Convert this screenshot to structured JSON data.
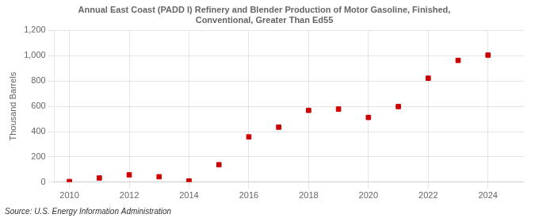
{
  "chart_data": {
    "type": "scatter",
    "title": [
      "Annual East Coast (PADD I) Refinery and Blender Production of Motor Gasoline, Finished,",
      "Conventional, Greater Than Ed55"
    ],
    "ylabel": "Thousand Barrels",
    "annotation": "Source: U.S. Energy Information Administration",
    "x": [
      2010,
      2011,
      2012,
      2013,
      2014,
      2015,
      2016,
      2017,
      2018,
      2019,
      2020,
      2021,
      2022,
      2023,
      2024
    ],
    "values": [
      5,
      33,
      58,
      43,
      10,
      138,
      358,
      435,
      568,
      578,
      512,
      598,
      822,
      963,
      1005
    ],
    "color": "#cc0000",
    "marker": "square",
    "xlim": [
      2009.5,
      2025.2
    ],
    "ylim": [
      0,
      1200
    ],
    "xticks": [
      2010,
      2012,
      2014,
      2016,
      2018,
      2020,
      2022,
      2024
    ],
    "yticks": [
      0,
      200,
      400,
      600,
      800,
      {
        "value": 1000,
        "label": "1,000"
      },
      {
        "value": 1200,
        "label": "1,200"
      }
    ],
    "grid": true
  }
}
